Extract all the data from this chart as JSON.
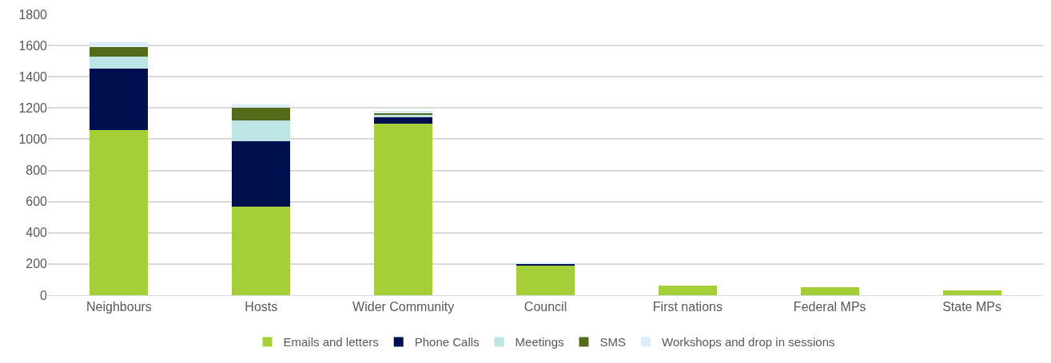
{
  "chart_data": {
    "type": "bar",
    "stacked": true,
    "categories": [
      "Neighbours",
      "Hosts",
      "Wider Community",
      "Council",
      "First nations",
      "Federal MPs",
      "State MPs"
    ],
    "series": [
      {
        "name": "Emails and letters",
        "color": "#a4cf38",
        "values": [
          1060,
          570,
          1100,
          190,
          60,
          50,
          30
        ]
      },
      {
        "name": "Phone Calls",
        "color": "#00104f",
        "values": [
          390,
          415,
          40,
          10,
          0,
          0,
          0
        ]
      },
      {
        "name": "Meetings",
        "color": "#bde5e6",
        "values": [
          80,
          135,
          20,
          null,
          0,
          0,
          0
        ]
      },
      {
        "name": "SMS",
        "color": "#556b1b",
        "values": [
          60,
          80,
          5,
          0,
          0,
          0,
          0
        ]
      },
      {
        "name": "Workshops and drop in sessions",
        "color": "#d9eef8",
        "values": [
          30,
          20,
          15,
          10,
          0,
          0,
          0
        ]
      }
    ],
    "ylim": [
      0,
      1800
    ],
    "yticks": [
      0,
      200,
      400,
      600,
      800,
      1000,
      1200,
      1400,
      1600,
      1800
    ],
    "grid": "y",
    "legend": "bottom"
  }
}
